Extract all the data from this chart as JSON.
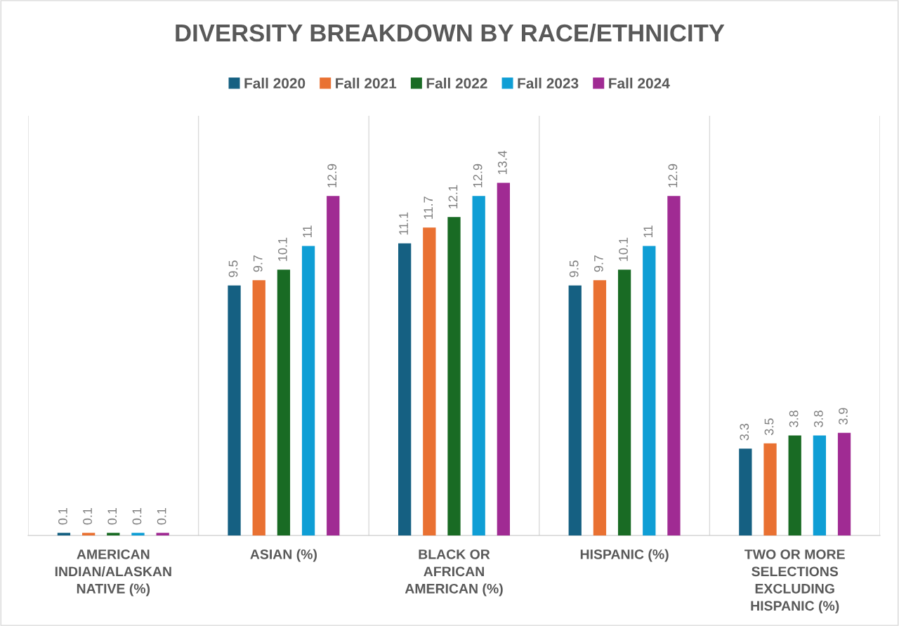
{
  "chart_data": {
    "type": "bar",
    "title": "DIVERSITY BREAKDOWN BY RACE/ETHNICITY",
    "categories": [
      "AMERICAN\nINDIAN/ALASKAN\nNATIVE (%)",
      "ASIAN (%)",
      "BLACK OR\nAFRICAN\nAMERICAN (%)",
      "HISPANIC (%)",
      "TWO OR MORE\nSELECTIONS\nEXCLUDING\nHISPANIC (%)"
    ],
    "series": [
      {
        "name": "Fall 2020",
        "color": "#156082",
        "values": [
          0.1,
          9.5,
          11.1,
          9.5,
          3.3
        ]
      },
      {
        "name": "Fall 2021",
        "color": "#e97132",
        "values": [
          0.1,
          9.7,
          11.7,
          9.7,
          3.5
        ]
      },
      {
        "name": "Fall 2022",
        "color": "#196b24",
        "values": [
          0.1,
          10.1,
          12.1,
          10.1,
          3.8
        ]
      },
      {
        "name": "Fall 2023",
        "color": "#0f9ed5",
        "values": [
          0.1,
          11,
          12.9,
          11,
          3.8
        ]
      },
      {
        "name": "Fall 2024",
        "color": "#a02b93",
        "values": [
          0.1,
          12.9,
          13.4,
          12.9,
          3.9
        ]
      }
    ],
    "data_labels": true,
    "legend": "top",
    "grid": "x"
  }
}
